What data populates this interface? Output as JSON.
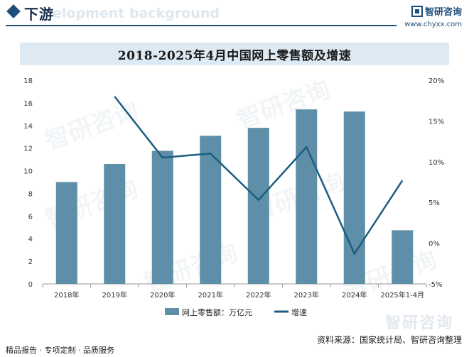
{
  "header": {
    "title": "下游",
    "ghost_text": "elopment background"
  },
  "brand": {
    "name": "智研咨询",
    "url": "www.chyxx.com"
  },
  "watermark_text": "智研咨询",
  "footer": {
    "left": "精品报告 · 专项定制 · 品质服务",
    "source": "资料来源：国家统计局、智研咨询整理"
  },
  "colors": {
    "bar": "#5e8ea8",
    "line": "#1b5e7f",
    "accent": "#1f4e79"
  },
  "chart_data": {
    "type": "bar+line",
    "title": "2018-2025年4月中国网上零售额及增速",
    "categories": [
      "2018年",
      "2019年",
      "2020年",
      "2021年",
      "2022年",
      "2023年",
      "2024年",
      "2025年1-4月"
    ],
    "series": [
      {
        "name": "网上零售额：万亿元",
        "type": "bar",
        "axis": "left",
        "values": [
          9.0,
          10.6,
          11.76,
          13.09,
          13.79,
          15.42,
          15.23,
          4.74
        ]
      },
      {
        "name": "增速",
        "type": "line",
        "axis": "right",
        "values": [
          null,
          18.0,
          10.5,
          11.0,
          5.3,
          11.8,
          -1.3,
          7.7
        ]
      }
    ],
    "y_left": {
      "min": 0,
      "max": 18,
      "step": 2,
      "ticks": [
        "0",
        "2",
        "4",
        "6",
        "8",
        "10",
        "12",
        "14",
        "16",
        "18"
      ]
    },
    "y_right": {
      "min": -5,
      "max": 20,
      "step": 5,
      "ticks": [
        "-5%",
        "0%",
        "5%",
        "10%",
        "15%",
        "20%"
      ]
    },
    "legend_position": "bottom",
    "grid": false
  }
}
